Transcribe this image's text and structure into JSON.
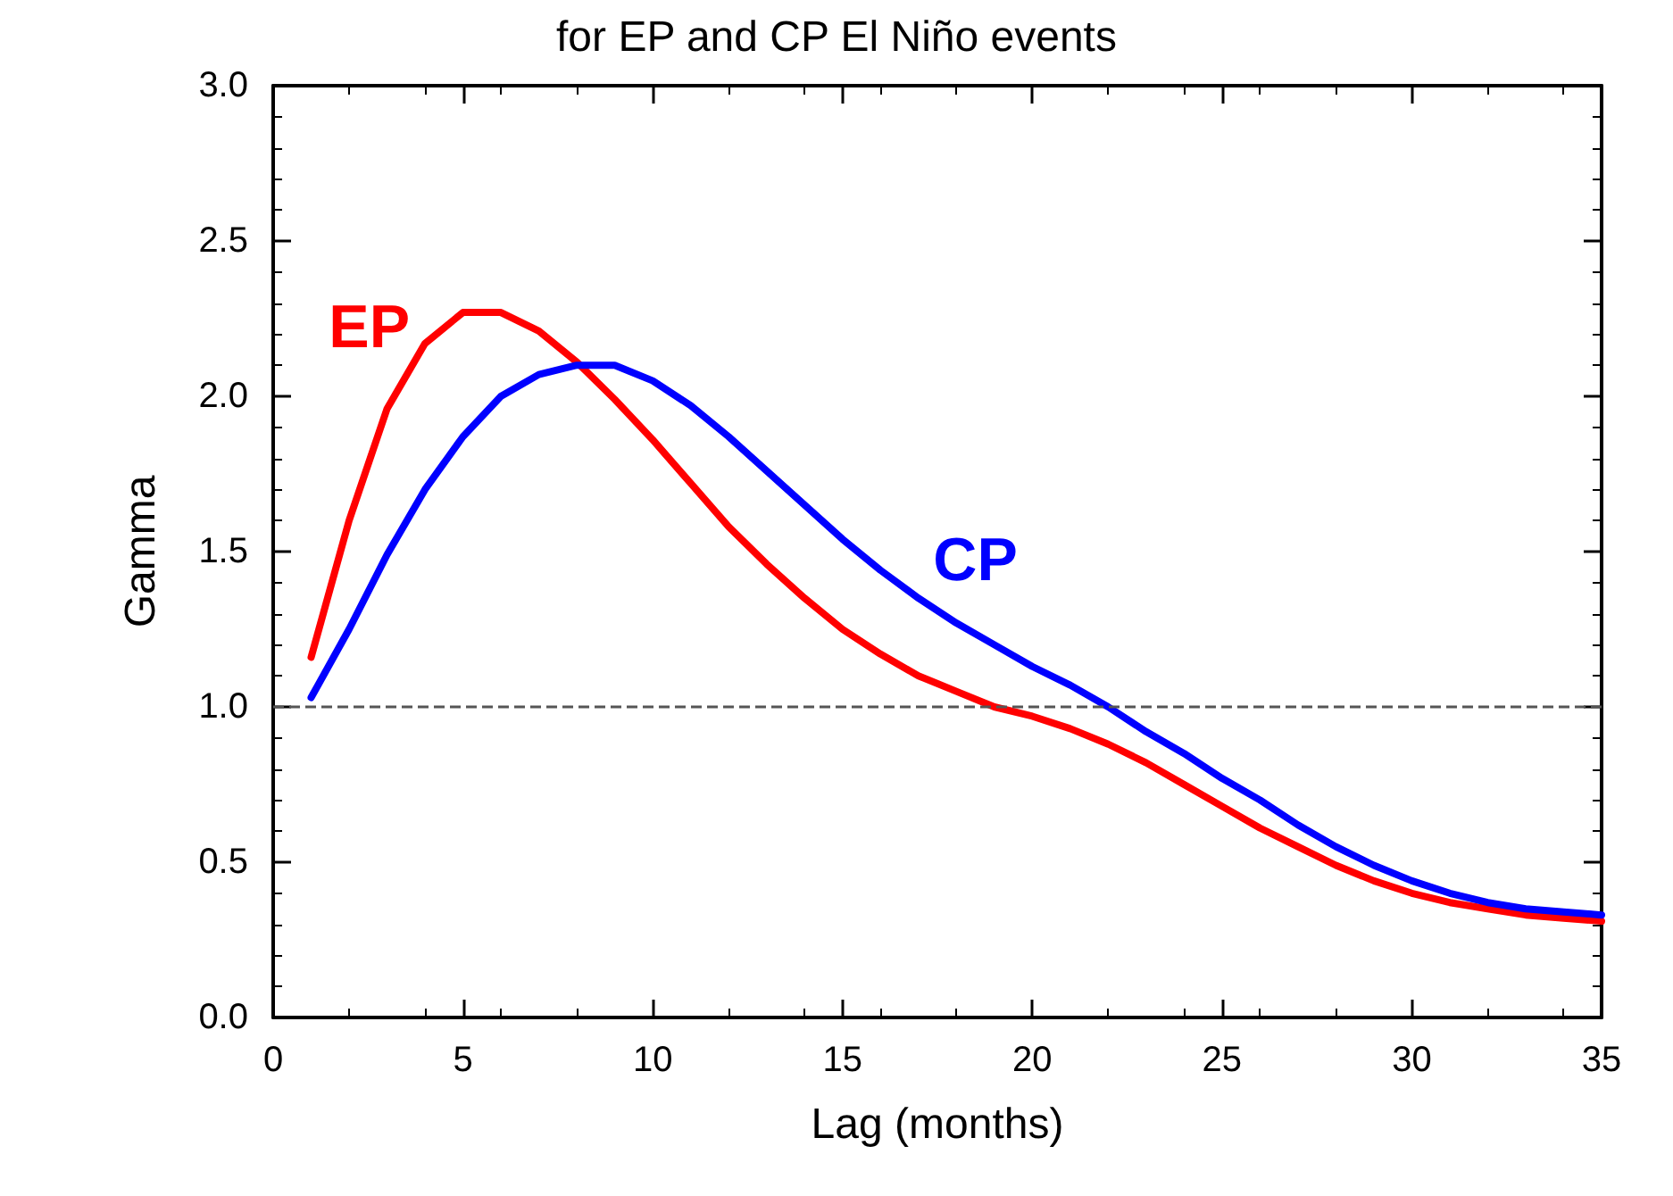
{
  "chart_data": {
    "type": "line",
    "title": "for EP and CP El Niño events",
    "xlabel": "Lag (months)",
    "ylabel": "Gamma",
    "x": [
      1,
      2,
      3,
      4,
      5,
      6,
      7,
      8,
      9,
      10,
      11,
      12,
      13,
      14,
      15,
      16,
      17,
      18,
      19,
      20,
      21,
      22,
      23,
      24,
      25,
      26,
      27,
      28,
      29,
      30,
      31,
      32,
      33,
      34,
      35
    ],
    "series": [
      {
        "name": "EP",
        "color": "#ff0000",
        "values": [
          1.16,
          1.6,
          1.96,
          2.17,
          2.27,
          2.27,
          2.21,
          2.11,
          1.99,
          1.86,
          1.72,
          1.58,
          1.46,
          1.35,
          1.25,
          1.17,
          1.1,
          1.05,
          1.0,
          0.97,
          0.93,
          0.88,
          0.82,
          0.75,
          0.68,
          0.61,
          0.55,
          0.49,
          0.44,
          0.4,
          0.37,
          0.35,
          0.33,
          0.32,
          0.31
        ]
      },
      {
        "name": "CP",
        "color": "#0000ff",
        "values": [
          1.03,
          1.25,
          1.49,
          1.7,
          1.87,
          2.0,
          2.07,
          2.1,
          2.1,
          2.05,
          1.97,
          1.87,
          1.76,
          1.65,
          1.54,
          1.44,
          1.35,
          1.27,
          1.2,
          1.13,
          1.07,
          1.0,
          0.92,
          0.85,
          0.77,
          0.7,
          0.62,
          0.55,
          0.49,
          0.44,
          0.4,
          0.37,
          0.35,
          0.34,
          0.33
        ]
      }
    ],
    "xlim": [
      0,
      35
    ],
    "xticks": [
      0,
      5,
      10,
      15,
      20,
      25,
      30,
      35
    ],
    "ylim": [
      0,
      3
    ],
    "yticks": [
      {
        "value": 0,
        "label": "0.0"
      },
      0.5,
      {
        "value": 1,
        "label": "1.0"
      },
      1.5,
      {
        "value": 2,
        "label": "2.0"
      },
      2.5,
      {
        "value": 3,
        "label": "3.0"
      }
    ],
    "ref_lines": [
      {
        "axis": "y",
        "value": 1,
        "color": "#555555",
        "line_style": "dashed"
      }
    ],
    "grid": false,
    "legend": false,
    "marker": "none",
    "line_style": "solid"
  }
}
